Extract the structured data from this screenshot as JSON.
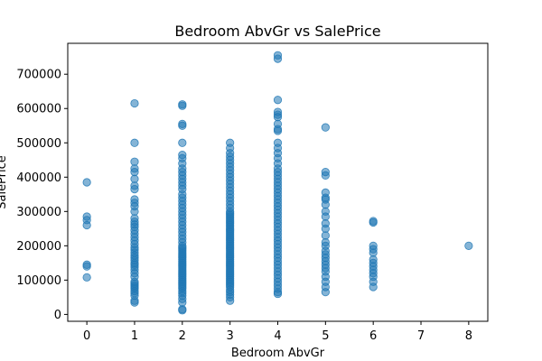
{
  "chart_data": {
    "type": "scatter",
    "title": "Bedroom AbvGr vs SalePrice",
    "xlabel": "Bedroom AbvGr",
    "ylabel": "SalePrice",
    "xlim": [
      -0.4,
      8.4
    ],
    "ylim": [
      -20000,
      790000
    ],
    "x_ticks": [
      0,
      1,
      2,
      3,
      4,
      5,
      6,
      7,
      8
    ],
    "x_tick_labels": [
      "0",
      "1",
      "2",
      "3",
      "4",
      "5",
      "6",
      "7",
      "8"
    ],
    "y_ticks": [
      0,
      100000,
      200000,
      300000,
      400000,
      500000,
      600000,
      700000
    ],
    "y_tick_labels": [
      "0",
      "100000",
      "200000",
      "300000",
      "400000",
      "500000",
      "600000",
      "700000"
    ],
    "grid": false,
    "marker_color": "#1f77b4",
    "marker_alpha": 0.55,
    "series": [
      {
        "points": [
          [
            0,
            108000
          ],
          [
            0,
            140000
          ],
          [
            0,
            145000
          ],
          [
            0,
            260000
          ],
          [
            0,
            275000
          ],
          [
            0,
            285000
          ],
          [
            0,
            385000
          ],
          [
            1,
            35000
          ],
          [
            1,
            40000
          ],
          [
            1,
            55000
          ],
          [
            1,
            62000
          ],
          [
            1,
            68000
          ],
          [
            1,
            75000
          ],
          [
            1,
            80000
          ],
          [
            1,
            85000
          ],
          [
            1,
            90000
          ],
          [
            1,
            95000
          ],
          [
            1,
            110000
          ],
          [
            1,
            120000
          ],
          [
            1,
            130000
          ],
          [
            1,
            138000
          ],
          [
            1,
            145000
          ],
          [
            1,
            150000
          ],
          [
            1,
            158000
          ],
          [
            1,
            165000
          ],
          [
            1,
            172000
          ],
          [
            1,
            180000
          ],
          [
            1,
            188000
          ],
          [
            1,
            195000
          ],
          [
            1,
            205000
          ],
          [
            1,
            215000
          ],
          [
            1,
            225000
          ],
          [
            1,
            235000
          ],
          [
            1,
            245000
          ],
          [
            1,
            255000
          ],
          [
            1,
            262000
          ],
          [
            1,
            270000
          ],
          [
            1,
            280000
          ],
          [
            1,
            300000
          ],
          [
            1,
            315000
          ],
          [
            1,
            325000
          ],
          [
            1,
            335000
          ],
          [
            1,
            365000
          ],
          [
            1,
            375000
          ],
          [
            1,
            395000
          ],
          [
            1,
            415000
          ],
          [
            1,
            425000
          ],
          [
            1,
            445000
          ],
          [
            1,
            500000
          ],
          [
            1,
            615000
          ],
          [
            2,
            12000
          ],
          [
            2,
            15000
          ],
          [
            2,
            35000
          ],
          [
            2,
            45000
          ],
          [
            2,
            55000
          ],
          [
            2,
            62000
          ],
          [
            2,
            68000
          ],
          [
            2,
            75000
          ],
          [
            2,
            80000
          ],
          [
            2,
            85000
          ],
          [
            2,
            90000
          ],
          [
            2,
            95000
          ],
          [
            2,
            100000
          ],
          [
            2,
            105000
          ],
          [
            2,
            110000
          ],
          [
            2,
            115000
          ],
          [
            2,
            120000
          ],
          [
            2,
            125000
          ],
          [
            2,
            130000
          ],
          [
            2,
            135000
          ],
          [
            2,
            140000
          ],
          [
            2,
            145000
          ],
          [
            2,
            150000
          ],
          [
            2,
            155000
          ],
          [
            2,
            160000
          ],
          [
            2,
            165000
          ],
          [
            2,
            170000
          ],
          [
            2,
            175000
          ],
          [
            2,
            180000
          ],
          [
            2,
            185000
          ],
          [
            2,
            190000
          ],
          [
            2,
            195000
          ],
          [
            2,
            200000
          ],
          [
            2,
            210000
          ],
          [
            2,
            220000
          ],
          [
            2,
            230000
          ],
          [
            2,
            240000
          ],
          [
            2,
            250000
          ],
          [
            2,
            260000
          ],
          [
            2,
            270000
          ],
          [
            2,
            280000
          ],
          [
            2,
            290000
          ],
          [
            2,
            300000
          ],
          [
            2,
            310000
          ],
          [
            2,
            320000
          ],
          [
            2,
            330000
          ],
          [
            2,
            340000
          ],
          [
            2,
            350000
          ],
          [
            2,
            365000
          ],
          [
            2,
            375000
          ],
          [
            2,
            385000
          ],
          [
            2,
            395000
          ],
          [
            2,
            405000
          ],
          [
            2,
            415000
          ],
          [
            2,
            425000
          ],
          [
            2,
            440000
          ],
          [
            2,
            455000
          ],
          [
            2,
            465000
          ],
          [
            2,
            500000
          ],
          [
            2,
            550000
          ],
          [
            2,
            555000
          ],
          [
            2,
            608000
          ],
          [
            2,
            612000
          ],
          [
            3,
            40000
          ],
          [
            3,
            50000
          ],
          [
            3,
            58000
          ],
          [
            3,
            65000
          ],
          [
            3,
            72000
          ],
          [
            3,
            80000
          ],
          [
            3,
            85000
          ],
          [
            3,
            90000
          ],
          [
            3,
            95000
          ],
          [
            3,
            100000
          ],
          [
            3,
            105000
          ],
          [
            3,
            110000
          ],
          [
            3,
            115000
          ],
          [
            3,
            120000
          ],
          [
            3,
            125000
          ],
          [
            3,
            130000
          ],
          [
            3,
            135000
          ],
          [
            3,
            140000
          ],
          [
            3,
            145000
          ],
          [
            3,
            150000
          ],
          [
            3,
            155000
          ],
          [
            3,
            160000
          ],
          [
            3,
            165000
          ],
          [
            3,
            170000
          ],
          [
            3,
            175000
          ],
          [
            3,
            180000
          ],
          [
            3,
            185000
          ],
          [
            3,
            190000
          ],
          [
            3,
            195000
          ],
          [
            3,
            200000
          ],
          [
            3,
            205000
          ],
          [
            3,
            210000
          ],
          [
            3,
            215000
          ],
          [
            3,
            220000
          ],
          [
            3,
            225000
          ],
          [
            3,
            230000
          ],
          [
            3,
            235000
          ],
          [
            3,
            240000
          ],
          [
            3,
            245000
          ],
          [
            3,
            250000
          ],
          [
            3,
            255000
          ],
          [
            3,
            260000
          ],
          [
            3,
            265000
          ],
          [
            3,
            270000
          ],
          [
            3,
            275000
          ],
          [
            3,
            280000
          ],
          [
            3,
            285000
          ],
          [
            3,
            290000
          ],
          [
            3,
            295000
          ],
          [
            3,
            300000
          ],
          [
            3,
            310000
          ],
          [
            3,
            320000
          ],
          [
            3,
            330000
          ],
          [
            3,
            340000
          ],
          [
            3,
            350000
          ],
          [
            3,
            360000
          ],
          [
            3,
            370000
          ],
          [
            3,
            380000
          ],
          [
            3,
            390000
          ],
          [
            3,
            400000
          ],
          [
            3,
            410000
          ],
          [
            3,
            420000
          ],
          [
            3,
            430000
          ],
          [
            3,
            440000
          ],
          [
            3,
            450000
          ],
          [
            3,
            460000
          ],
          [
            3,
            470000
          ],
          [
            3,
            485000
          ],
          [
            3,
            500000
          ],
          [
            4,
            60000
          ],
          [
            4,
            65000
          ],
          [
            4,
            75000
          ],
          [
            4,
            85000
          ],
          [
            4,
            95000
          ],
          [
            4,
            105000
          ],
          [
            4,
            115000
          ],
          [
            4,
            125000
          ],
          [
            4,
            135000
          ],
          [
            4,
            145000
          ],
          [
            4,
            155000
          ],
          [
            4,
            165000
          ],
          [
            4,
            175000
          ],
          [
            4,
            185000
          ],
          [
            4,
            195000
          ],
          [
            4,
            205000
          ],
          [
            4,
            215000
          ],
          [
            4,
            225000
          ],
          [
            4,
            235000
          ],
          [
            4,
            245000
          ],
          [
            4,
            255000
          ],
          [
            4,
            265000
          ],
          [
            4,
            275000
          ],
          [
            4,
            285000
          ],
          [
            4,
            295000
          ],
          [
            4,
            305000
          ],
          [
            4,
            315000
          ],
          [
            4,
            325000
          ],
          [
            4,
            335000
          ],
          [
            4,
            345000
          ],
          [
            4,
            355000
          ],
          [
            4,
            365000
          ],
          [
            4,
            375000
          ],
          [
            4,
            385000
          ],
          [
            4,
            395000
          ],
          [
            4,
            405000
          ],
          [
            4,
            415000
          ],
          [
            4,
            425000
          ],
          [
            4,
            440000
          ],
          [
            4,
            455000
          ],
          [
            4,
            470000
          ],
          [
            4,
            485000
          ],
          [
            4,
            500000
          ],
          [
            4,
            535000
          ],
          [
            4,
            540000
          ],
          [
            4,
            555000
          ],
          [
            4,
            575000
          ],
          [
            4,
            582000
          ],
          [
            4,
            590000
          ],
          [
            4,
            625000
          ],
          [
            4,
            745000
          ],
          [
            4,
            755000
          ],
          [
            5,
            65000
          ],
          [
            5,
            80000
          ],
          [
            5,
            95000
          ],
          [
            5,
            110000
          ],
          [
            5,
            125000
          ],
          [
            5,
            135000
          ],
          [
            5,
            145000
          ],
          [
            5,
            155000
          ],
          [
            5,
            165000
          ],
          [
            5,
            175000
          ],
          [
            5,
            185000
          ],
          [
            5,
            200000
          ],
          [
            5,
            210000
          ],
          [
            5,
            230000
          ],
          [
            5,
            250000
          ],
          [
            5,
            265000
          ],
          [
            5,
            285000
          ],
          [
            5,
            300000
          ],
          [
            5,
            320000
          ],
          [
            5,
            335000
          ],
          [
            5,
            340000
          ],
          [
            5,
            355000
          ],
          [
            5,
            405000
          ],
          [
            5,
            415000
          ],
          [
            5,
            545000
          ],
          [
            6,
            80000
          ],
          [
            6,
            95000
          ],
          [
            6,
            110000
          ],
          [
            6,
            120000
          ],
          [
            6,
            130000
          ],
          [
            6,
            140000
          ],
          [
            6,
            150000
          ],
          [
            6,
            160000
          ],
          [
            6,
            180000
          ],
          [
            6,
            190000
          ],
          [
            6,
            200000
          ],
          [
            6,
            268000
          ],
          [
            6,
            272000
          ],
          [
            8,
            200000
          ]
        ]
      }
    ]
  }
}
